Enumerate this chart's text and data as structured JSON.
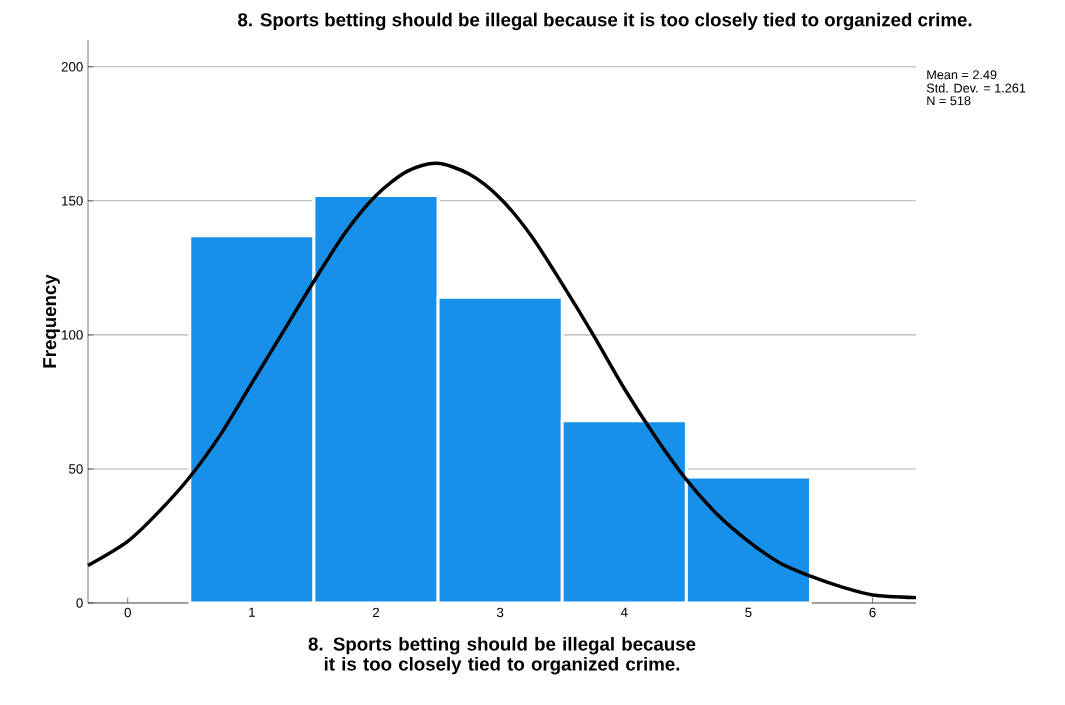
{
  "chart_data": {
    "type": "histogram",
    "title": "8. Sports betting should be illegal because it is too closely tied to organized crime.",
    "xlabel": "8. Sports betting should be illegal because it is too closely tied to organized crime.",
    "ylabel": "Frequency",
    "bins": [
      0.5,
      1.5,
      2.5,
      3.5,
      4.5,
      5.5
    ],
    "values": [
      137,
      152,
      114,
      68,
      47
    ],
    "color": "#1690e8",
    "series": [
      {
        "type": "line",
        "color": "#000000",
        "x": [
          -0.32,
          0,
          0.25,
          0.5,
          0.75,
          1,
          1.25,
          1.5,
          1.75,
          2,
          2.25,
          2.49,
          2.75,
          3,
          3.25,
          3.5,
          3.75,
          4,
          4.25,
          4.5,
          4.75,
          5,
          5.25,
          5.5,
          5.75,
          6,
          6.35
        ],
        "values": [
          14,
          23,
          34,
          47,
          63,
          82,
          101,
          120,
          138,
          152,
          161,
          164,
          160,
          151,
          137,
          119,
          100,
          80,
          62,
          46,
          33,
          23,
          15,
          10,
          6,
          3,
          2
        ]
      }
    ],
    "xlim": [
      -0.32,
      6.35
    ],
    "ylim": [
      0,
      210
    ],
    "xticks": [
      0,
      1,
      2,
      3,
      4,
      5,
      6
    ],
    "yticks": [
      0,
      50,
      100,
      150,
      200
    ],
    "grid": "y",
    "annotations": [
      "Mean = 2.49",
      "Std. Dev. = 1.261",
      "N = 518"
    ]
  }
}
